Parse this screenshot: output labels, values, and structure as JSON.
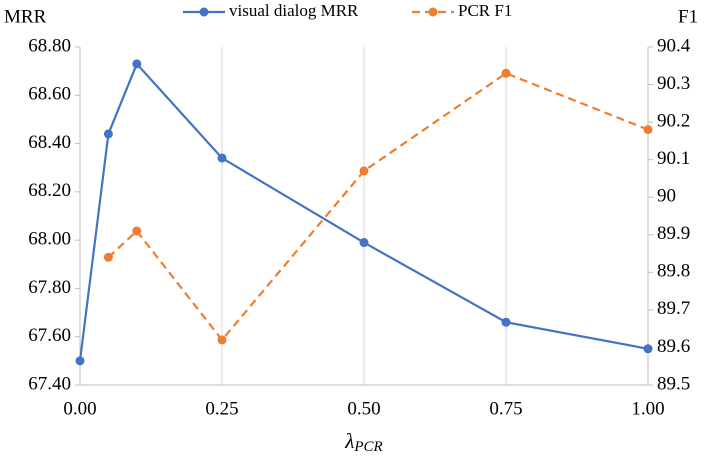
{
  "chart_data": {
    "type": "line",
    "ylabel": "MRR",
    "y2label": "F1",
    "xlabel": "λ",
    "xlabel_subscript": "PCR",
    "x": [
      0,
      0.05,
      0.1,
      0.25,
      0.5,
      0.75,
      1.0
    ],
    "series": [
      {
        "name": "visual dialog MRR",
        "color": "#4472c4",
        "dash": false,
        "values": [
          67.5,
          68.44,
          68.73,
          68.34,
          67.99,
          67.66,
          67.55
        ]
      },
      {
        "name": "PCR F1",
        "color": "#ed7d31",
        "dash": true,
        "axis": "y2",
        "values": [
          null,
          89.84,
          89.91,
          89.62,
          90.07,
          90.33,
          90.18
        ]
      }
    ],
    "xlim": [
      0,
      1
    ],
    "xticks": [
      {
        "value": 0,
        "label": "0.00"
      },
      {
        "value": 0.25,
        "label": "0.25"
      },
      {
        "value": 0.5,
        "label": "0.50"
      },
      {
        "value": 0.75,
        "label": "0.75"
      },
      {
        "value": 1,
        "label": "1.00"
      }
    ],
    "ylim": [
      67.4,
      68.8
    ],
    "yticks": [
      {
        "value": 67.4,
        "label": "67.40"
      },
      {
        "value": 67.6,
        "label": "67.60"
      },
      {
        "value": 67.8,
        "label": "67.80"
      },
      {
        "value": 68.0,
        "label": "68.00"
      },
      {
        "value": 68.2,
        "label": "68.20"
      },
      {
        "value": 68.4,
        "label": "68.40"
      },
      {
        "value": 68.6,
        "label": "68.60"
      },
      {
        "value": 68.8,
        "label": "68.80"
      }
    ],
    "y2lim": [
      89.5,
      90.4
    ],
    "y2ticks": [
      89.5,
      89.6,
      89.7,
      89.8,
      89.9,
      90,
      90.1,
      90.2,
      90.3,
      90.4
    ],
    "grid": true,
    "legend": "top"
  }
}
